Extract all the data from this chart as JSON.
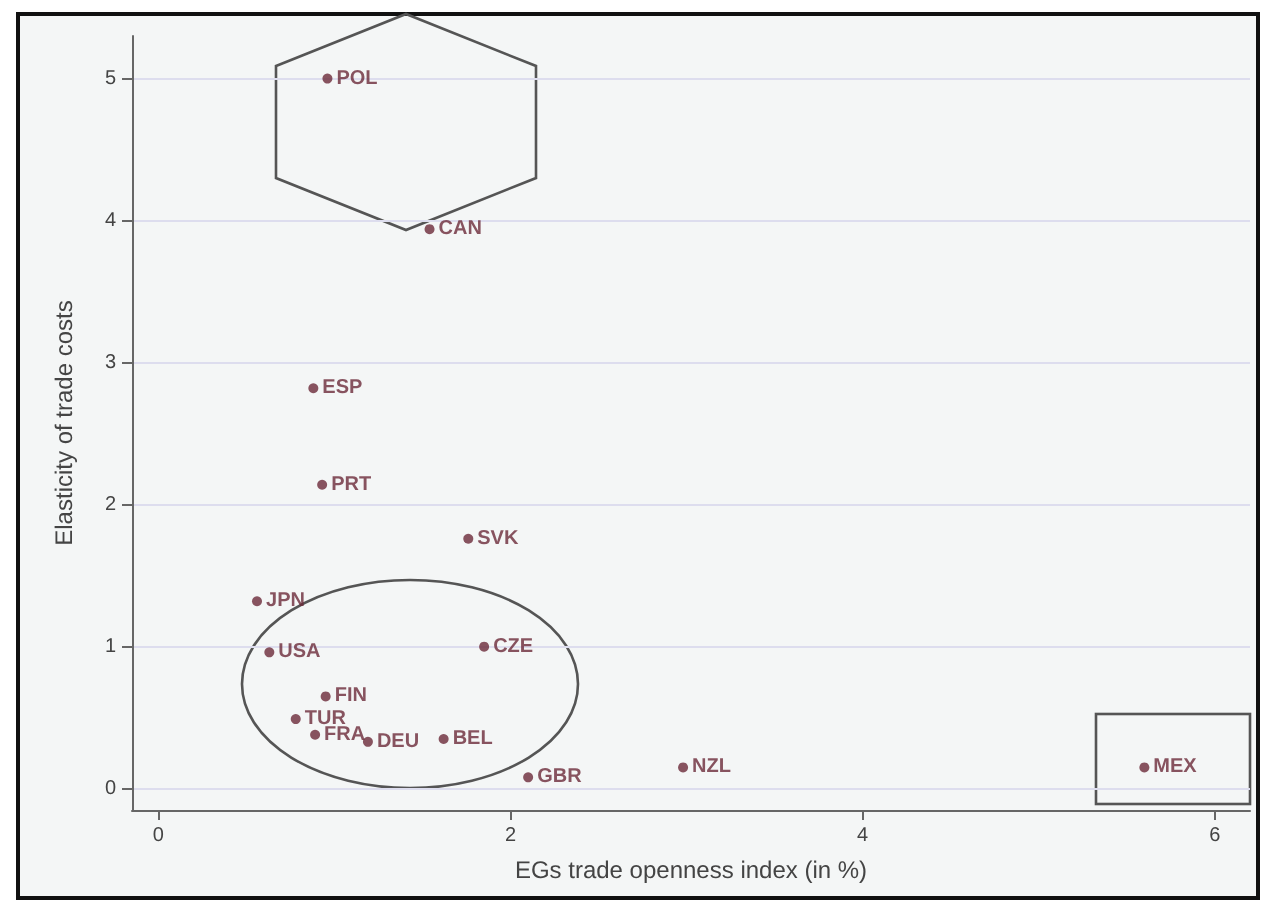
{
  "chart_data": {
    "type": "scatter",
    "xlabel": "EGs trade openness index (in %)",
    "ylabel": "Elasticity of trade costs",
    "xlim": [
      -0.15,
      6.2
    ],
    "xticks": [
      0,
      2,
      4,
      6
    ],
    "ylim": [
      -0.15,
      5.3
    ],
    "yticks": [
      0,
      1,
      2,
      3,
      4,
      5
    ],
    "grid": "y",
    "marker": "circle",
    "series": [
      {
        "color": "#6b2a3a",
        "x": [
          0.96,
          1.54,
          0.88,
          0.93,
          1.76,
          0.56,
          0.63,
          1.85,
          0.95,
          0.78,
          0.89,
          1.19,
          1.62,
          2.1,
          2.98,
          5.6
        ],
        "values": [
          5.0,
          3.94,
          2.82,
          2.14,
          1.76,
          1.32,
          0.96,
          1.0,
          0.65,
          0.49,
          0.38,
          0.33,
          0.35,
          0.08,
          0.15,
          0.15
        ],
        "value_labels": [
          "POL",
          "CAN",
          "ESP",
          "PRT",
          "SVK",
          "JPN",
          "USA",
          "CZE",
          "FIN",
          "TUR",
          "FRA",
          "DEU",
          "BEL",
          "GBR",
          "NZL",
          "MEX"
        ]
      }
    ]
  }
}
